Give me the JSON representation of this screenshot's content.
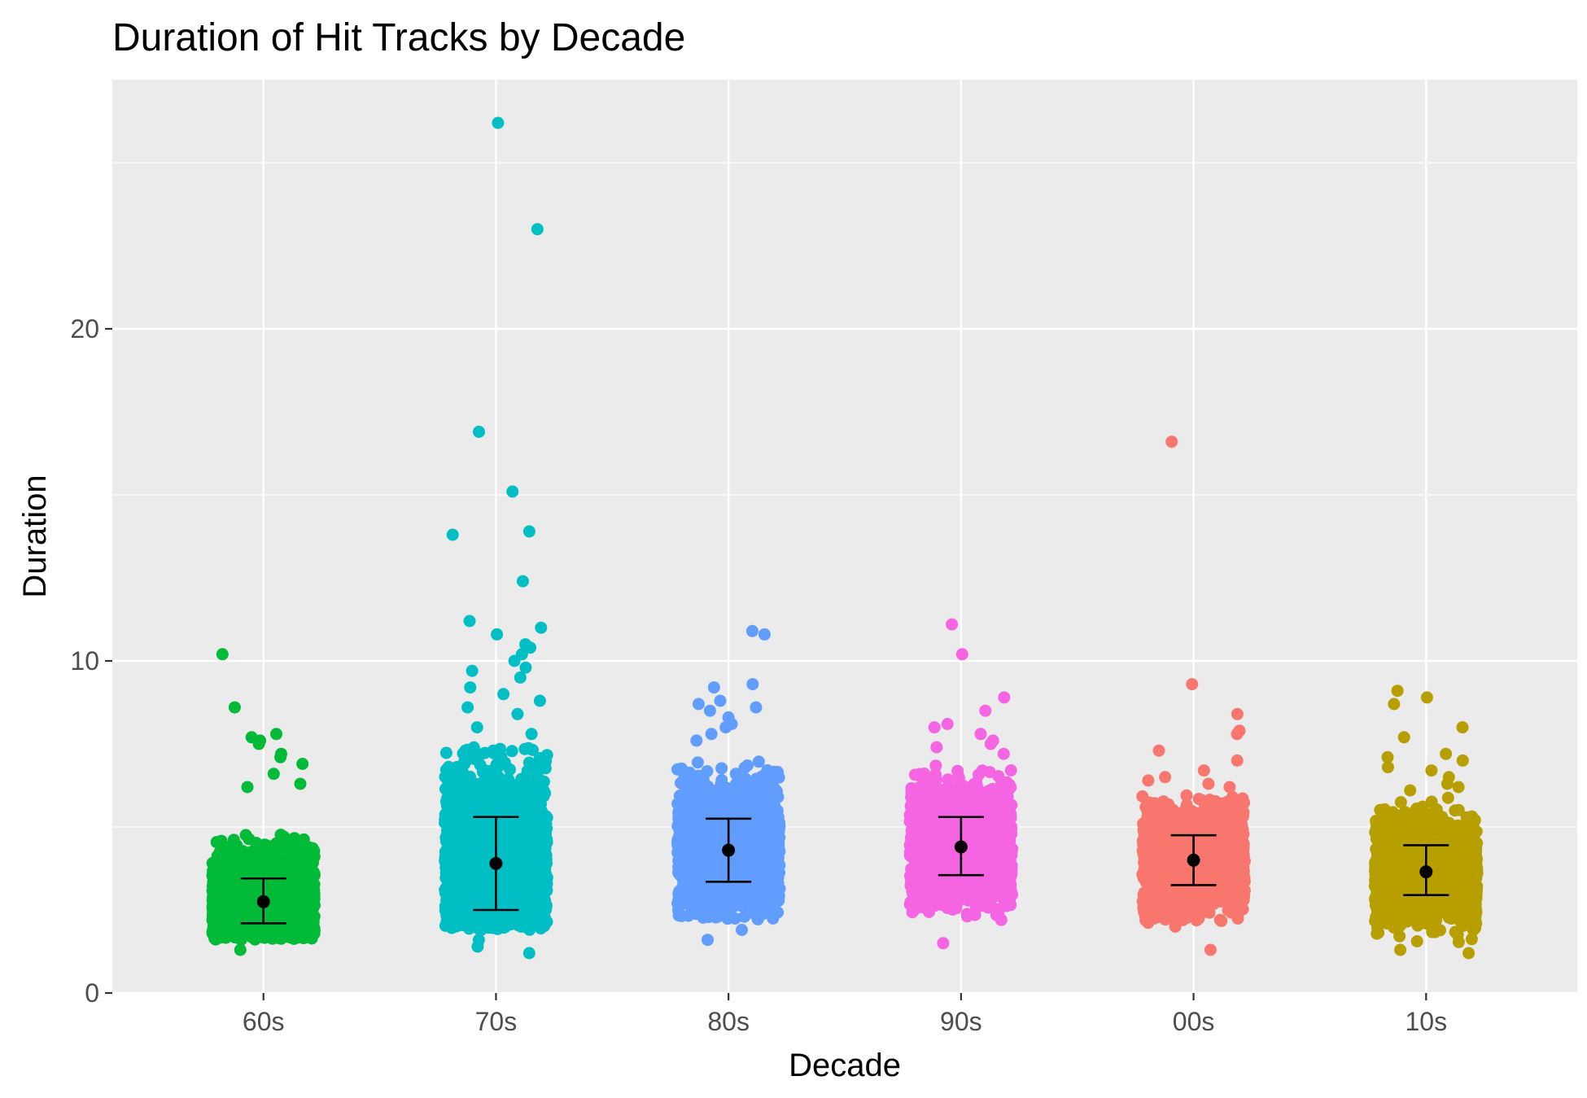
{
  "chart_data": {
    "type": "scatter",
    "title": "Duration of Hit Tracks by Decade",
    "xlabel": "Decade",
    "ylabel": "Duration",
    "categories": [
      "60s",
      "70s",
      "80s",
      "90s",
      "00s",
      "10s"
    ],
    "ylim": [
      0,
      27.5
    ],
    "yticks": [
      0,
      10,
      20
    ],
    "grid": true,
    "legend": "none",
    "series": [
      {
        "category": "60s",
        "color": "#00BA38",
        "mean": 2.75,
        "error_low": 2.1,
        "error_high": 3.45,
        "typical_range": [
          1.6,
          4.8
        ],
        "outliers": [
          10.2,
          8.6,
          7.8,
          7.7,
          7.6,
          7.5,
          7.2,
          7.1,
          6.9,
          6.6,
          6.3,
          6.2,
          1.3
        ]
      },
      {
        "category": "70s",
        "color": "#00BFC4",
        "mean": 3.9,
        "error_low": 2.5,
        "error_high": 5.3,
        "typical_range": [
          1.9,
          7.4
        ],
        "outliers": [
          26.2,
          23.0,
          16.9,
          15.1,
          13.9,
          13.8,
          12.4,
          11.2,
          11.0,
          10.8,
          10.5,
          10.4,
          10.2,
          10.0,
          9.8,
          9.7,
          9.5,
          9.2,
          9.0,
          8.8,
          8.6,
          8.4,
          8.0,
          7.8,
          1.6,
          1.4,
          1.2
        ]
      },
      {
        "category": "80s",
        "color": "#619CFF",
        "mean": 4.3,
        "error_low": 3.35,
        "error_high": 5.25,
        "typical_range": [
          2.2,
          7.0
        ],
        "outliers": [
          10.9,
          10.8,
          9.3,
          9.2,
          8.8,
          8.7,
          8.6,
          8.5,
          8.3,
          8.1,
          8.0,
          7.8,
          7.6,
          1.9,
          1.6
        ]
      },
      {
        "category": "90s",
        "color": "#F564E3",
        "mean": 4.4,
        "error_low": 3.55,
        "error_high": 5.3,
        "typical_range": [
          2.3,
          6.9
        ],
        "outliers": [
          11.1,
          10.2,
          8.9,
          8.5,
          8.1,
          8.0,
          7.8,
          7.6,
          7.5,
          7.4,
          7.2,
          2.2,
          1.5
        ]
      },
      {
        "category": "00s",
        "color": "#F8766D",
        "mean": 4.0,
        "error_low": 3.25,
        "error_high": 4.75,
        "typical_range": [
          2.0,
          6.0
        ],
        "outliers": [
          16.6,
          9.3,
          8.4,
          7.9,
          7.8,
          7.3,
          7.0,
          6.7,
          6.5,
          6.4,
          6.3,
          6.2,
          2.0,
          1.3
        ]
      },
      {
        "category": "10s",
        "color": "#B79F00",
        "mean": 3.65,
        "error_low": 2.95,
        "error_high": 4.45,
        "typical_range": [
          1.4,
          5.9
        ],
        "outliers": [
          9.1,
          8.9,
          8.7,
          8.0,
          7.7,
          7.2,
          7.1,
          7.0,
          6.8,
          6.7,
          6.5,
          6.3,
          6.2,
          6.1,
          1.3,
          1.2
        ]
      }
    ]
  }
}
